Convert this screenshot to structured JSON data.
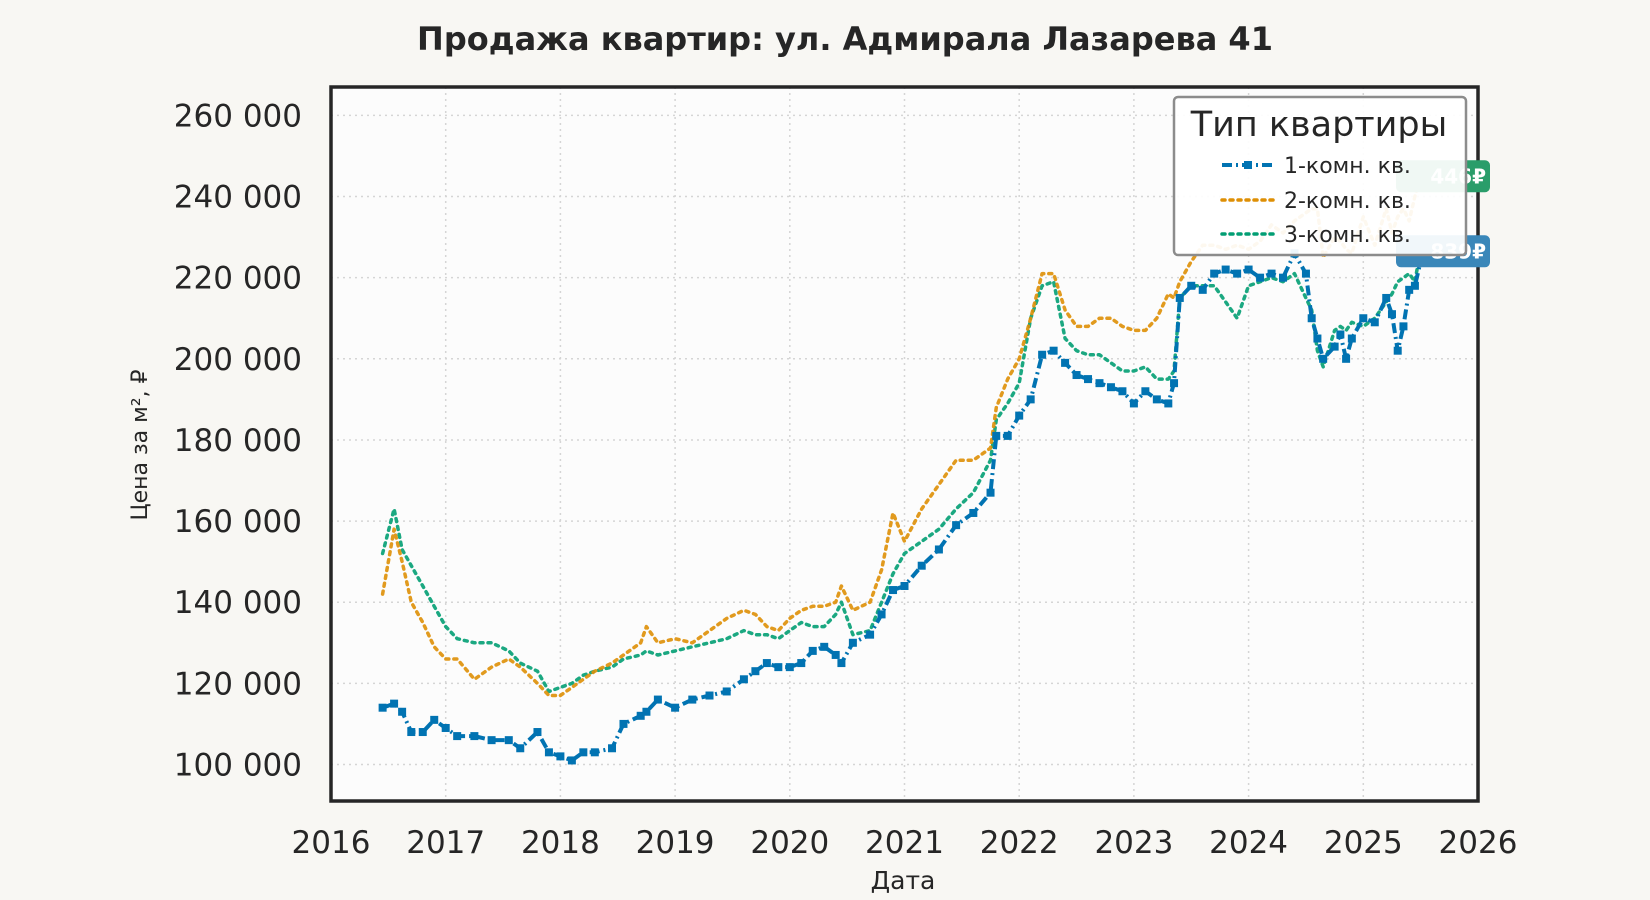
{
  "chart_data": {
    "type": "line",
    "title": "Продажа квартир: ул. Адмирала Лазарева 41",
    "xlabel": "Дата",
    "ylabel": "Цена за м², ₽",
    "xlim": [
      2016,
      2026
    ],
    "ylim": [
      91000,
      267000
    ],
    "x_ticks": [
      "2016",
      "2017",
      "2018",
      "2019",
      "2020",
      "2021",
      "2022",
      "2023",
      "2024",
      "2025",
      "2026"
    ],
    "y_ticks": [
      "100 000",
      "120 000",
      "140 000",
      "160 000",
      "180 000",
      "200 000",
      "220 000",
      "240 000",
      "260 000"
    ],
    "y_tick_values": [
      100000,
      120000,
      140000,
      160000,
      180000,
      200000,
      220000,
      240000,
      260000
    ],
    "grid": true,
    "legend": {
      "title": "Тип квартиры",
      "position": "top-right"
    },
    "series": [
      {
        "name": "1-комн. кв.",
        "color": "#0173b2",
        "style": "dashdot-markers",
        "x": [
          2016.45,
          2016.55,
          2016.62,
          2016.7,
          2016.8,
          2016.9,
          2017.0,
          2017.1,
          2017.25,
          2017.4,
          2017.55,
          2017.65,
          2017.8,
          2017.9,
          2018.0,
          2018.1,
          2018.2,
          2018.3,
          2018.45,
          2018.55,
          2018.7,
          2018.75,
          2018.85,
          2019.0,
          2019.15,
          2019.3,
          2019.45,
          2019.6,
          2019.7,
          2019.8,
          2019.9,
          2020.0,
          2020.1,
          2020.2,
          2020.3,
          2020.4,
          2020.45,
          2020.55,
          2020.7,
          2020.8,
          2020.9,
          2021.0,
          2021.15,
          2021.3,
          2021.45,
          2021.6,
          2021.75,
          2021.8,
          2021.9,
          2022.0,
          2022.1,
          2022.2,
          2022.3,
          2022.4,
          2022.5,
          2022.6,
          2022.7,
          2022.8,
          2022.9,
          2023.0,
          2023.1,
          2023.2,
          2023.3,
          2023.35,
          2023.4,
          2023.5,
          2023.6,
          2023.7,
          2023.8,
          2023.9,
          2024.0,
          2024.1,
          2024.2,
          2024.3,
          2024.4,
          2024.5,
          2024.55,
          2024.6,
          2024.65,
          2024.75,
          2024.8,
          2024.85,
          2024.9,
          2025.0,
          2025.1,
          2025.2,
          2025.25,
          2025.3,
          2025.35,
          2025.4,
          2025.45,
          2025.5
        ],
        "y": [
          114000,
          115000,
          113000,
          108000,
          108000,
          111000,
          109000,
          107000,
          107000,
          106000,
          106000,
          104000,
          108000,
          103000,
          102000,
          101000,
          103000,
          103000,
          104000,
          110000,
          112000,
          113000,
          116000,
          114000,
          116000,
          117000,
          118000,
          121000,
          123000,
          125000,
          124000,
          124000,
          125000,
          128000,
          129000,
          127000,
          125000,
          130000,
          132000,
          137000,
          143000,
          144000,
          149000,
          153000,
          159000,
          162000,
          167000,
          181000,
          181000,
          186000,
          190000,
          201000,
          202000,
          199000,
          196000,
          195000,
          194000,
          193000,
          192000,
          189000,
          192000,
          190000,
          189000,
          194000,
          215000,
          218000,
          217000,
          221000,
          222000,
          221000,
          222000,
          220000,
          221000,
          220000,
          226000,
          221000,
          210000,
          205000,
          200000,
          203000,
          206000,
          200000,
          205000,
          210000,
          209000,
          215000,
          211000,
          202000,
          208000,
          217000,
          218000,
          224000
        ]
      },
      {
        "name": "2-комн. кв.",
        "color": "#de8f05",
        "style": "dotted",
        "x": [
          2016.45,
          2016.55,
          2016.62,
          2016.7,
          2016.8,
          2016.9,
          2017.0,
          2017.1,
          2017.25,
          2017.4,
          2017.55,
          2017.65,
          2017.8,
          2017.9,
          2018.0,
          2018.1,
          2018.2,
          2018.3,
          2018.45,
          2018.55,
          2018.7,
          2018.75,
          2018.85,
          2019.0,
          2019.15,
          2019.3,
          2019.45,
          2019.6,
          2019.7,
          2019.8,
          2019.9,
          2020.0,
          2020.1,
          2020.2,
          2020.3,
          2020.4,
          2020.45,
          2020.55,
          2020.7,
          2020.8,
          2020.9,
          2021.0,
          2021.15,
          2021.3,
          2021.45,
          2021.6,
          2021.75,
          2021.8,
          2021.9,
          2022.0,
          2022.1,
          2022.2,
          2022.3,
          2022.4,
          2022.5,
          2022.6,
          2022.7,
          2022.8,
          2022.9,
          2023.0,
          2023.1,
          2023.2,
          2023.3,
          2023.35,
          2023.4,
          2023.5,
          2023.6,
          2023.7,
          2023.8,
          2023.9,
          2024.0,
          2024.1,
          2024.2,
          2024.3,
          2024.4,
          2024.5,
          2024.55,
          2024.6,
          2024.65,
          2024.75,
          2024.8,
          2024.85,
          2024.9,
          2025.0,
          2025.1,
          2025.2,
          2025.25,
          2025.3,
          2025.35,
          2025.4,
          2025.45,
          2025.5
        ],
        "y": [
          142000,
          158000,
          150000,
          140000,
          135000,
          129000,
          126000,
          126000,
          121000,
          124000,
          126000,
          124000,
          120000,
          117000,
          117000,
          119000,
          121000,
          123000,
          125000,
          127000,
          130000,
          134000,
          130000,
          131000,
          130000,
          133000,
          136000,
          138000,
          137000,
          134000,
          133000,
          136000,
          138000,
          139000,
          139000,
          140000,
          144000,
          138000,
          140000,
          148000,
          162000,
          155000,
          163000,
          169000,
          175000,
          175000,
          178000,
          188000,
          195000,
          200000,
          210000,
          221000,
          221000,
          212000,
          208000,
          208000,
          210000,
          210000,
          208000,
          207000,
          207000,
          210000,
          216000,
          215000,
          219000,
          224000,
          228000,
          228000,
          227000,
          228000,
          227000,
          229000,
          233000,
          231000,
          234000,
          236000,
          237000,
          237000,
          225000,
          230000,
          229000,
          227000,
          226000,
          235000,
          228000,
          237000,
          231000,
          235000,
          237000,
          234000,
          240000,
          245000
        ]
      },
      {
        "name": "3-комн. кв.",
        "color": "#029e73",
        "style": "dotted",
        "x": [
          2016.45,
          2016.55,
          2016.62,
          2016.7,
          2016.8,
          2016.9,
          2017.0,
          2017.1,
          2017.25,
          2017.4,
          2017.55,
          2017.65,
          2017.8,
          2017.9,
          2018.0,
          2018.1,
          2018.2,
          2018.3,
          2018.45,
          2018.55,
          2018.7,
          2018.75,
          2018.85,
          2019.0,
          2019.15,
          2019.3,
          2019.45,
          2019.6,
          2019.7,
          2019.8,
          2019.9,
          2020.0,
          2020.1,
          2020.2,
          2020.3,
          2020.4,
          2020.45,
          2020.55,
          2020.7,
          2020.8,
          2020.9,
          2021.0,
          2021.15,
          2021.3,
          2021.45,
          2021.6,
          2021.75,
          2021.8,
          2021.9,
          2022.0,
          2022.1,
          2022.2,
          2022.3,
          2022.4,
          2022.5,
          2022.6,
          2022.7,
          2022.8,
          2022.9,
          2023.0,
          2023.1,
          2023.2,
          2023.3,
          2023.35,
          2023.4,
          2023.5,
          2023.6,
          2023.7,
          2023.8,
          2023.9,
          2024.0,
          2024.1,
          2024.2,
          2024.3,
          2024.4,
          2024.5,
          2024.55,
          2024.6,
          2024.65,
          2024.75,
          2024.8,
          2024.85,
          2024.9,
          2025.0,
          2025.1,
          2025.2,
          2025.25,
          2025.3,
          2025.35,
          2025.4,
          2025.45,
          2025.5
        ],
        "y": [
          152000,
          163000,
          153000,
          149000,
          144000,
          139000,
          134000,
          131000,
          130000,
          130000,
          128000,
          125000,
          123000,
          118000,
          119000,
          120000,
          122000,
          123000,
          124000,
          126000,
          127000,
          128000,
          127000,
          128000,
          129000,
          130000,
          131000,
          133000,
          132000,
          132000,
          131000,
          133000,
          135000,
          134000,
          134000,
          137000,
          140000,
          132000,
          133000,
          140000,
          147000,
          152000,
          155000,
          158000,
          163000,
          167000,
          175000,
          185000,
          189000,
          194000,
          210000,
          218000,
          219000,
          205000,
          202000,
          201000,
          201000,
          199000,
          197000,
          197000,
          198000,
          195000,
          195000,
          197000,
          215000,
          218000,
          218000,
          218000,
          214000,
          210000,
          218000,
          219000,
          220000,
          219000,
          221000,
          215000,
          212000,
          202000,
          198000,
          207000,
          208000,
          207000,
          209000,
          208000,
          210000,
          214000,
          216000,
          219000,
          220000,
          221000,
          219000,
          227000
        ]
      }
    ],
    "annotations": [
      {
        "text": "446₽",
        "series": "2-комн. кв.",
        "color": "#2a9d6a",
        "y": 245000
      },
      {
        "text": "839₽",
        "series": "1-комн. кв.",
        "color": "#3a87b9",
        "y": 226500
      }
    ]
  }
}
